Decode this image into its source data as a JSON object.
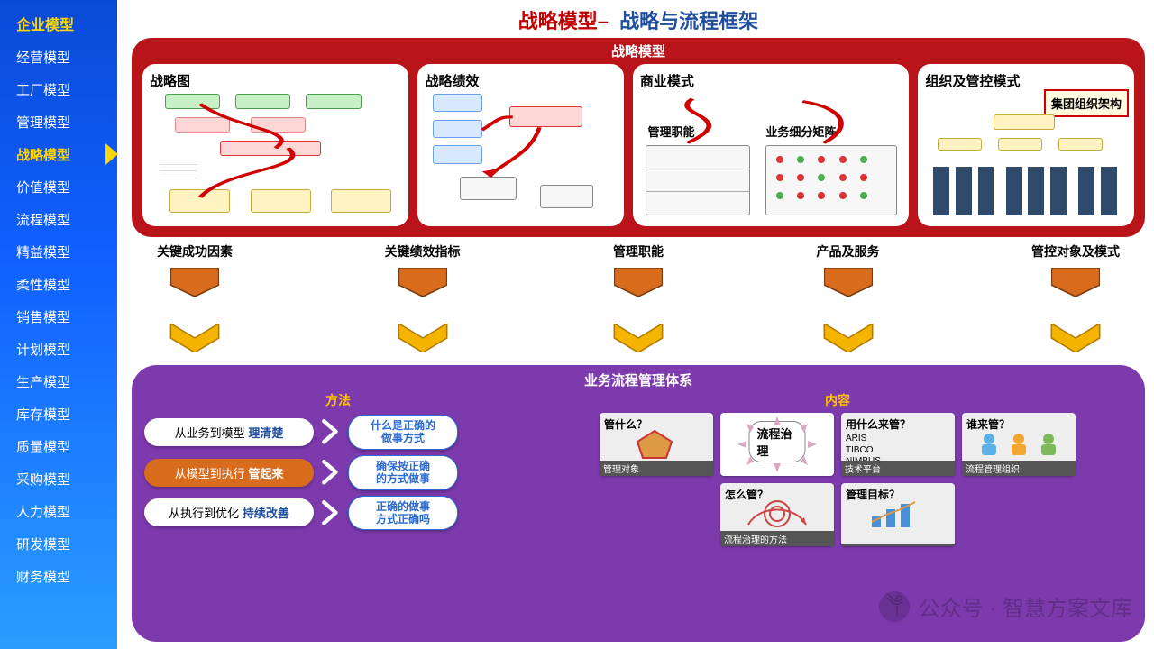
{
  "colors": {
    "sidebar_gradient_top": "#0a4bd6",
    "sidebar_gradient_bottom": "#2a9dff",
    "sidebar_text": "#ffffff",
    "sidebar_active": "#ffd600",
    "title_red": "#c00000",
    "title_blue": "#1f4e9c",
    "red_panel": "#b91419",
    "purple_panel": "#7c3aad",
    "heading_yellow": "#ffc000",
    "pent_fill": "#d96b1c",
    "chev_fill": "#f5b400",
    "pill_orange": "#d96b1c",
    "blue_pill_border": "#2a6bd4"
  },
  "sidebar": {
    "top": "企业模型",
    "items": [
      "经营模型",
      "工厂模型",
      "管理模型",
      "战略模型",
      "价值模型",
      "流程模型",
      "精益模型",
      "柔性模型",
      "销售模型",
      "计划模型",
      "生产模型",
      "库存模型",
      "质量模型",
      "采购模型",
      "人力模型",
      "研发模型",
      "财务模型"
    ],
    "active_index": 3
  },
  "title": {
    "left": "战略模型–",
    "right": "战略与流程框架"
  },
  "red_panel": {
    "title": "战略模型",
    "cards": [
      {
        "title": "战略图"
      },
      {
        "title": "战略绩效"
      },
      {
        "title": "商业模式",
        "sublabels": [
          "管理职能",
          "业务细分矩阵"
        ]
      },
      {
        "title": "组织及管控模式",
        "callout": "集团组织架构"
      }
    ]
  },
  "mid_columns": [
    {
      "label": "关键成功因素"
    },
    {
      "label": "关键绩效指标"
    },
    {
      "label": "管理职能"
    },
    {
      "label": "产品及服务"
    },
    {
      "label": "管控对象及模式"
    }
  ],
  "purple_panel": {
    "title": "业务流程管理体系",
    "left_heading": "方法",
    "right_heading": "内容",
    "methods": [
      {
        "prefix": "从业务到模型",
        "emph": "理清楚",
        "goal": "什么是正确的\n做事方式",
        "variant": "white"
      },
      {
        "prefix": "从模型到执行",
        "emph": "管起来",
        "goal": "确保按正确\n的方式做事",
        "variant": "orange"
      },
      {
        "prefix": "从执行到优化",
        "emph": "持续改善",
        "goal": "正确的做事\n方式正确吗",
        "variant": "white"
      }
    ],
    "tiles": [
      {
        "title": "管什么？",
        "footer": "管理对象"
      },
      {
        "title": "流程治理",
        "footer": "",
        "variant": "center"
      },
      {
        "title": "用什么来管？",
        "footer": "技术平台",
        "list": [
          "ARIS",
          "TIBCO",
          "NIMBUS"
        ]
      },
      {
        "title": "谁来管？",
        "footer": "流程管理组织"
      },
      {
        "title": "怎么管？",
        "footer": "流程治理的方法"
      },
      {
        "title": "管理目标？",
        "footer": ""
      }
    ]
  },
  "watermark": {
    "text": "公众号 · 智慧方案文库"
  }
}
